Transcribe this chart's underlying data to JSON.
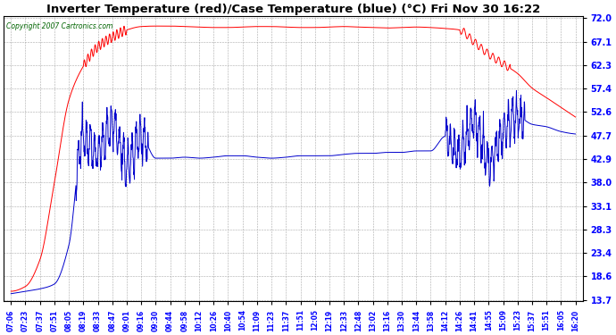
{
  "title": "Inverter Temperature (red)/Case Temperature (blue) (°C) Fri Nov 30 16:22",
  "copyright": "Copyright 2007 Cartronics.com",
  "yticks": [
    13.7,
    18.6,
    23.4,
    28.3,
    33.1,
    38.0,
    42.9,
    47.7,
    52.6,
    57.4,
    62.3,
    67.1,
    72.0
  ],
  "ymin": 13.7,
  "ymax": 72.0,
  "background_color": "#ffffff",
  "plot_background": "#ffffff",
  "grid_color": "#aaaaaa",
  "red_color": "#ff0000",
  "blue_color": "#0000cc",
  "xtick_labels": [
    "07:06",
    "07:23",
    "07:37",
    "07:51",
    "08:05",
    "08:19",
    "08:33",
    "08:47",
    "09:01",
    "09:16",
    "09:30",
    "09:44",
    "09:58",
    "10:12",
    "10:26",
    "10:40",
    "10:54",
    "11:09",
    "11:23",
    "11:37",
    "11:51",
    "12:05",
    "12:19",
    "12:33",
    "12:48",
    "13:02",
    "13:16",
    "13:30",
    "13:44",
    "13:58",
    "14:12",
    "14:26",
    "14:41",
    "14:55",
    "15:09",
    "15:23",
    "15:37",
    "15:51",
    "16:05",
    "16:20"
  ],
  "red_vals": [
    15.5,
    16.5,
    22.0,
    38.0,
    55.0,
    62.0,
    66.0,
    68.0,
    69.5,
    70.2,
    70.3,
    70.3,
    70.2,
    70.1,
    70.0,
    70.0,
    70.1,
    70.2,
    70.2,
    70.1,
    70.0,
    70.0,
    70.1,
    70.2,
    70.1,
    70.0,
    69.9,
    70.0,
    70.1,
    70.0,
    69.8,
    69.5,
    67.0,
    64.5,
    62.5,
    60.5,
    57.5,
    55.5,
    53.5,
    51.5
  ],
  "blue_vals": [
    15.0,
    15.5,
    16.0,
    17.0,
    25.0,
    47.5,
    44.0,
    50.0,
    41.5,
    47.5,
    43.0,
    43.0,
    43.2,
    43.0,
    43.2,
    43.5,
    43.5,
    43.2,
    43.0,
    43.2,
    43.5,
    43.5,
    43.5,
    43.8,
    44.0,
    44.0,
    44.2,
    44.2,
    44.5,
    44.5,
    47.5,
    44.0,
    50.5,
    42.0,
    48.5,
    51.5,
    50.0,
    49.5,
    48.5,
    48.0
  ]
}
